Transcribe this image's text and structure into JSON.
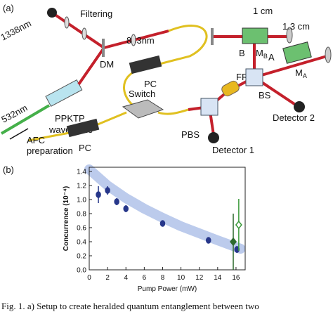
{
  "figure_a": {
    "panel": "(a)",
    "labels": {
      "filtering": "Filtering",
      "wl1338": "1338nm",
      "dm": "DM",
      "wl883": "883nm",
      "wl532": "532nm",
      "ppktp": "PPKTP",
      "waveguide": "waveguide",
      "pc1": "PC",
      "pc2": "PC",
      "switch": "Switch",
      "afc": "AFC",
      "preparation": "preparation",
      "pbs": "PBS",
      "fr": "FR",
      "bs": "BS",
      "arm_b": "B",
      "arm_a": "A",
      "len_b": "1 cm",
      "len_a": "1.3 cm",
      "mb": {
        "main": "M",
        "sub": "B"
      },
      "ma": {
        "main": "M",
        "sub": "A"
      },
      "detector1": "Detector 1",
      "detector2": "Detector 2"
    }
  },
  "panel_b": "(b)",
  "chart_data": {
    "type": "scatter",
    "x_label": "Pump Power (mW)",
    "y_label": "Concurrence (10⁻⁴)",
    "xlim": [
      0,
      17
    ],
    "xticks": [
      0,
      2,
      4,
      6,
      8,
      10,
      12,
      14,
      16
    ],
    "ylim": [
      0,
      1.46
    ],
    "yticks": [
      {
        "value": 0,
        "label": "0.0"
      },
      0.2,
      0.4,
      0.6,
      0.8,
      {
        "value": 1,
        "label": "1.0"
      },
      1.2,
      1.4
    ],
    "band": {
      "x": [
        0,
        2,
        4,
        6,
        8,
        10,
        12,
        14,
        16.5
      ],
      "values": [
        1.43,
        1.2,
        1.02,
        0.87,
        0.74,
        0.62,
        0.52,
        0.42,
        0.3
      ],
      "halfwidth": 0.07,
      "color": "#bccbec"
    },
    "series": [
      {
        "marker": "circle",
        "color": "#27378a",
        "x": [
          1,
          2,
          3,
          4,
          8,
          13,
          16.1
        ],
        "values": [
          1.07,
          1.13,
          0.97,
          0.87,
          0.66,
          0.42,
          0.29
        ],
        "errors": [
          0.12,
          0.06,
          0.05,
          0.05,
          0.03,
          0.03,
          0.05
        ]
      },
      {
        "marker": "diamond",
        "color": "#2d6a2d",
        "x": [
          15.7
        ],
        "values": [
          0.4
        ],
        "errors": [
          0.4
        ]
      },
      {
        "marker": "open-diamond",
        "color": "#3a9a3a",
        "x": [
          16.3
        ],
        "values": [
          0.64
        ],
        "errors": [
          0.37
        ]
      }
    ]
  },
  "caption": "Fig. 1. a) Setup to create heralded quantum entanglement between two"
}
